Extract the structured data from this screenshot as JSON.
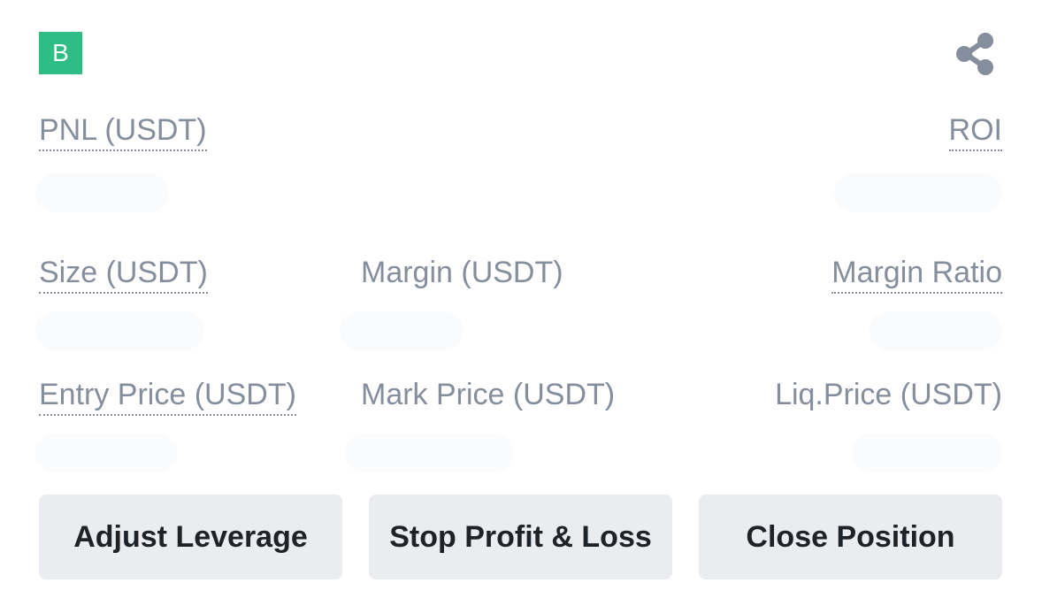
{
  "position": {
    "side_badge": "B",
    "share_icon": "share-icon",
    "colors": {
      "badge": "#2ebd85",
      "label": "#848e9c",
      "button_bg": "#eaecef",
      "button_text": "#1e2329"
    }
  },
  "fields": {
    "pnl_label": "PNL (USDT)",
    "roi_label": "ROI",
    "size_label": "Size (USDT)",
    "margin_label": "Margin (USDT)",
    "margin_ratio_label": "Margin Ratio",
    "entry_price_label": "Entry Price (USDT)",
    "mark_price_label": "Mark Price (USDT)",
    "liq_price_label": "Liq.Price (USDT)"
  },
  "actions": {
    "adjust_leverage": "Adjust Leverage",
    "stop_profit_loss": "Stop Profit & Loss",
    "close_position": "Close Position"
  }
}
